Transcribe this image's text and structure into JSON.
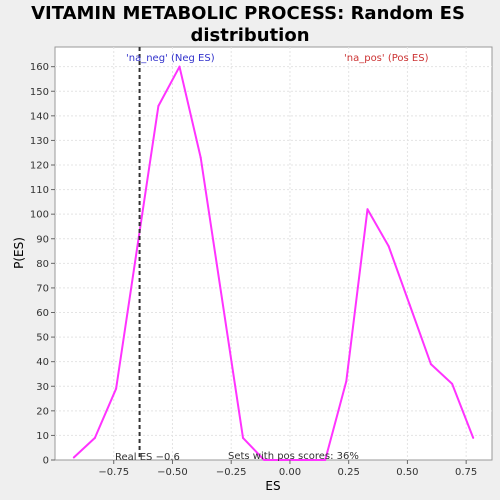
{
  "chart_data": {
    "type": "line",
    "title_lines": [
      "VITAMIN METABOLIC PROCESS: Random ES",
      "distribution"
    ],
    "xlabel": "ES",
    "ylabel": "P(ES)",
    "xlim": [
      -1.0,
      0.86
    ],
    "ylim": [
      0,
      168
    ],
    "x_ticks": [
      -0.75,
      -0.5,
      -0.25,
      0.0,
      0.25,
      0.5,
      0.75
    ],
    "x_tick_labels": [
      "−0.75",
      "−0.50",
      "−0.25",
      "0.00",
      "0.25",
      "0.50",
      "0.75"
    ],
    "y_ticks": [
      0,
      10,
      20,
      30,
      40,
      50,
      60,
      70,
      80,
      90,
      100,
      110,
      120,
      130,
      140,
      150,
      160
    ],
    "grid": true,
    "series": [
      {
        "color": "#ff33ff",
        "x": [
          -0.92,
          -0.83,
          -0.74,
          -0.56,
          -0.47,
          -0.38,
          -0.2,
          -0.11,
          0.15,
          0.24,
          0.33,
          0.42,
          0.51,
          0.6,
          0.69,
          0.78
        ],
        "y": [
          1,
          9,
          29,
          144,
          160,
          123,
          9,
          0,
          0,
          32,
          102,
          87,
          63,
          39,
          31,
          9
        ]
      }
    ],
    "real_es": -0.64,
    "annotations": {
      "neg_label": "'na_neg' (Neg ES)",
      "pos_label": "'na_pos' (Pos ES)",
      "real_es_label": "Real ES −0.6",
      "pos_scores_label": "Sets with pos scores: 36%"
    },
    "colors": {
      "neg": "#3333cc",
      "pos": "#cc3333",
      "plot_bg": "#ffffff",
      "page_bg": "#efefef",
      "grid": "#e4e4e4"
    }
  }
}
